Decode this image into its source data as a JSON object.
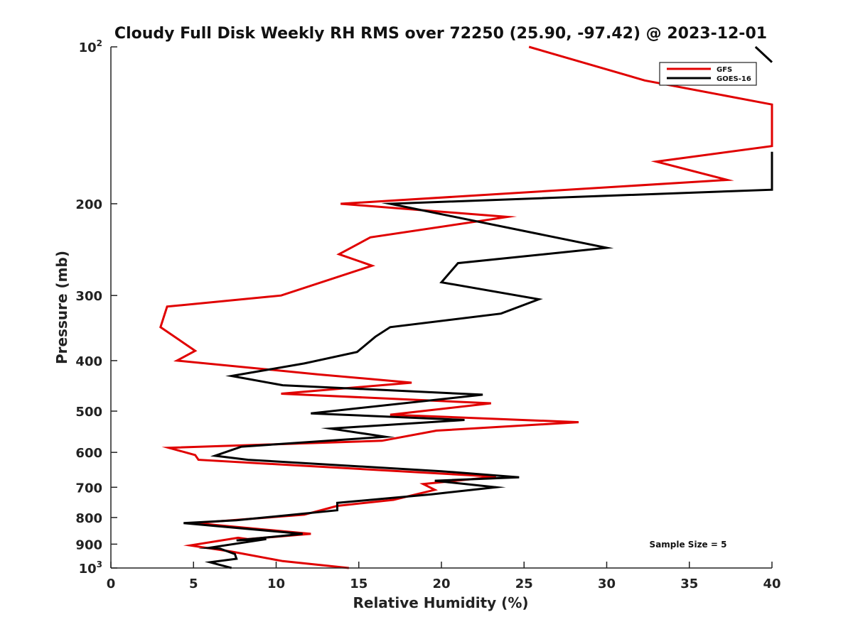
{
  "chart_data": {
    "type": "line",
    "title": "Cloudy Full Disk Weekly RH RMS over 72250 (25.90, -97.42) @ 2023-12-01",
    "xlabel": "Relative Humidity (%)",
    "ylabel": "Pressure (mb)",
    "xlim": [
      0,
      40
    ],
    "ylim": [
      100,
      1000
    ],
    "y_scale": "log",
    "y_reversed": true,
    "grid": false,
    "legend_position": "top-right",
    "x_ticks": [
      "0",
      "5",
      "10",
      "15",
      "20",
      "25",
      "30",
      "35",
      "40"
    ],
    "y_ticks": [
      {
        "value": 100,
        "label": "10",
        "sup": "2"
      },
      {
        "value": 200,
        "label": "200",
        "sup": ""
      },
      {
        "value": 300,
        "label": "300",
        "sup": ""
      },
      {
        "value": 400,
        "label": "400",
        "sup": ""
      },
      {
        "value": 500,
        "label": "500",
        "sup": ""
      },
      {
        "value": 600,
        "label": "600",
        "sup": ""
      },
      {
        "value": 700,
        "label": "700",
        "sup": ""
      },
      {
        "value": 800,
        "label": "800",
        "sup": ""
      },
      {
        "value": 900,
        "label": "900",
        "sup": ""
      },
      {
        "value": 1000,
        "label": "10",
        "sup": "3"
      }
    ],
    "annotation": "Sample Size = 5",
    "series": [
      {
        "name": "GFS",
        "color": "#e00000",
        "points": [
          [
            25.3,
            100
          ],
          [
            32.3,
            116
          ],
          [
            40,
            129
          ],
          [
            40,
            155
          ],
          [
            33,
            166
          ],
          [
            37.3,
            180
          ],
          [
            13.9,
            200
          ],
          [
            24,
            212
          ],
          [
            15.7,
            232
          ],
          [
            13.8,
            250
          ],
          [
            15.8,
            263
          ],
          [
            10.3,
            300
          ],
          [
            3.4,
            315
          ],
          [
            3.0,
            345
          ],
          [
            5.1,
            383
          ],
          [
            4.0,
            400
          ],
          [
            12.5,
            425
          ],
          [
            18.2,
            441
          ],
          [
            10.3,
            463
          ],
          [
            23.0,
            483
          ],
          [
            16.9,
            508
          ],
          [
            28.3,
            525
          ],
          [
            19.7,
            545
          ],
          [
            16.4,
            570
          ],
          [
            3.5,
            588
          ],
          [
            5.1,
            607
          ],
          [
            5.3,
            620
          ],
          [
            23.3,
            668
          ],
          [
            18.9,
            690
          ],
          [
            19.6,
            708
          ],
          [
            17.1,
            740
          ],
          [
            13.7,
            760
          ],
          [
            11.7,
            790
          ],
          [
            6.2,
            815
          ],
          [
            5.1,
            820
          ],
          [
            12.1,
            860
          ],
          [
            8.3,
            880
          ],
          [
            7.7,
            875
          ],
          [
            4.8,
            905
          ],
          [
            7.3,
            930
          ],
          [
            10.4,
            970
          ],
          [
            14.4,
            1000
          ]
        ]
      },
      {
        "name": "GOES-16",
        "color": "#000000",
        "points": [
          [
            40,
            159
          ],
          [
            40,
            188
          ],
          [
            16.9,
            200
          ],
          [
            30.0,
            243
          ],
          [
            21.0,
            260
          ],
          [
            20.0,
            283
          ],
          [
            25.9,
            305
          ],
          [
            23.6,
            325
          ],
          [
            16.9,
            345
          ],
          [
            16.0,
            360
          ],
          [
            14.9,
            385
          ],
          [
            11.7,
            405
          ],
          [
            7.3,
            428
          ],
          [
            10.4,
            446
          ],
          [
            22.5,
            465
          ],
          [
            12.1,
            505
          ],
          [
            21.4,
            520
          ],
          [
            13.3,
            540
          ],
          [
            16.6,
            560
          ],
          [
            7.9,
            585
          ],
          [
            6.3,
            609
          ],
          [
            8.3,
            620
          ],
          [
            20.0,
            652
          ],
          [
            24.7,
            670
          ],
          [
            19.6,
            680
          ],
          [
            23.3,
            700
          ],
          [
            19.4,
            722
          ],
          [
            13.7,
            750
          ],
          [
            13.7,
            775
          ],
          [
            7.6,
            810
          ],
          [
            4.4,
            820
          ],
          [
            11.6,
            860
          ],
          [
            7.6,
            885
          ],
          [
            9.4,
            880
          ],
          [
            5.9,
            915
          ],
          [
            6.6,
            918
          ],
          [
            7.5,
            940
          ],
          [
            7.6,
            960
          ],
          [
            6.0,
            975
          ],
          [
            7.3,
            1000
          ]
        ]
      }
    ],
    "cut_marks": [
      {
        "points": [
          [
            39.0,
            100
          ],
          [
            40.0,
            107
          ]
        ],
        "color": "#000000"
      }
    ]
  }
}
